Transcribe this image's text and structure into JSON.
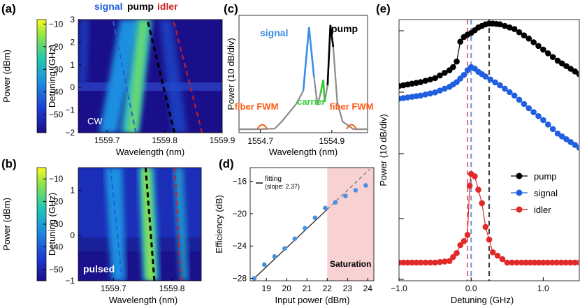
{
  "figure": {
    "panel_labels": [
      "(a)",
      "(b)",
      "(c)",
      "(d)",
      "(e)"
    ]
  },
  "colors": {
    "signal": "#1f5fe0",
    "pump": "#000000",
    "idler": "#cc1f1f",
    "carrier": "#33cc33",
    "fwm": "#ff5a14",
    "spectrum": "#8a8a8a",
    "fit": "#222222",
    "dot": "#4a90e2",
    "saturation": "#f8d2d2"
  },
  "chart_data": [
    {
      "panel": "a",
      "type": "heatmap",
      "xlabel": "Wavelength (nm)",
      "ylabel": "Detuning (GHz)",
      "xlim": [
        1559.65,
        1559.9
      ],
      "ylim": [
        -2,
        3
      ],
      "xticks": [
        "1559.7",
        "1559.8",
        "1559.9"
      ],
      "yticks": [
        "-2",
        "-1",
        "0",
        "1",
        "2",
        "3"
      ],
      "colorbar": {
        "label": "Power (dBm)",
        "range": [
          -58,
          -8
        ],
        "ticks": [
          "-10",
          "-20",
          "-30",
          "-40",
          "-50"
        ]
      },
      "line_labels": [
        "signal",
        "pump",
        "idler"
      ],
      "annotation": "CW",
      "lines": [
        {
          "name": "signal",
          "points": [
            [
              1559.75,
              -2
            ],
            [
              1559.71,
              3
            ]
          ]
        },
        {
          "name": "pump",
          "points": [
            [
              1559.817,
              -2
            ],
            [
              1559.77,
              3
            ]
          ]
        },
        {
          "name": "idler",
          "points": [
            [
              1559.865,
              -2
            ],
            [
              1559.815,
              3
            ]
          ]
        }
      ]
    },
    {
      "panel": "b",
      "type": "heatmap",
      "xlabel": "Wavelength (nm)",
      "ylabel": "Detuning (GHz)",
      "xlim": [
        1559.64,
        1559.85
      ],
      "ylim": [
        -1,
        1.5
      ],
      "xticks": [
        "1559.7",
        "1559.8"
      ],
      "yticks": [
        "-1",
        "0",
        "1"
      ],
      "colorbar": {
        "label": "Power (dBm)",
        "range": [
          -55,
          -5
        ],
        "ticks": [
          "-10",
          "-20",
          "-30",
          "-40",
          "-50"
        ]
      },
      "annotation": "pulsed",
      "lines": [
        {
          "name": "signal",
          "points": [
            [
              1559.715,
              -1
            ],
            [
              1559.695,
              1.5
            ]
          ]
        },
        {
          "name": "pump",
          "points": [
            [
              1559.77,
              -1
            ],
            [
              1559.755,
              1.5
            ]
          ]
        },
        {
          "name": "idler",
          "points": [
            [
              1559.815,
              -1
            ],
            [
              1559.805,
              1.5
            ]
          ]
        }
      ]
    },
    {
      "panel": "c",
      "type": "line",
      "xlabel": "Wavelength (nm)",
      "ylabel": "Power (10 dB/div)",
      "xticks": [
        "1554.7",
        "1554.9"
      ],
      "labels": {
        "signal": "signal",
        "pump": "pump",
        "carrier": "carrier",
        "fwm_left": "fiber FWM",
        "fwm_right": "fiber FWM"
      },
      "x": [
        1554.64,
        1554.7,
        1554.74,
        1554.76,
        1554.78,
        1554.8,
        1554.82,
        1554.836,
        1554.85,
        1554.86,
        1554.868,
        1554.876,
        1554.88,
        1554.888,
        1554.896,
        1554.904,
        1554.915,
        1554.93,
        1554.96,
        1555.0
      ],
      "y": [
        0,
        0,
        0.5,
        7,
        15,
        23,
        35,
        93,
        48,
        22,
        32,
        45,
        25,
        40,
        95,
        75,
        25,
        7,
        0,
        0
      ]
    },
    {
      "panel": "d",
      "type": "scatter",
      "xlabel": "Input power (dBm)",
      "ylabel": "Efficiency (dB)",
      "xlim": [
        18.2,
        24.3
      ],
      "ylim": [
        -28.3,
        -14.3
      ],
      "xticks": [
        "19",
        "20",
        "21",
        "22",
        "23",
        "24"
      ],
      "yticks": [
        "-16",
        "-20",
        "-24",
        "-28"
      ],
      "legend": [
        "fitting",
        "(slope: 2.37)"
      ],
      "shaded_label": "Saturation",
      "saturation_from": 22,
      "fit": {
        "slope": 2.37,
        "x0": 18.4,
        "y0": -28.0
      },
      "x": [
        18.4,
        18.9,
        19.4,
        19.9,
        20.4,
        20.9,
        21.4,
        21.9,
        22.4,
        22.9,
        23.4,
        23.9
      ],
      "y": [
        -28.0,
        -26.3,
        -25.3,
        -24.3,
        -23.1,
        -21.8,
        -20.5,
        -19.3,
        -18.6,
        -17.8,
        -17.1,
        -16.5
      ]
    },
    {
      "panel": "e",
      "type": "line",
      "xlabel": "Detuning (GHz)",
      "ylabel": "Power (10 dB/div)",
      "xlim": [
        -1.0,
        1.5
      ],
      "xticks": [
        "-1.0",
        "0.0",
        "1.0"
      ],
      "vlines": [
        -0.05,
        0.0,
        0.25
      ],
      "series": [
        {
          "name": "pump",
          "x": [
            -1.0,
            -0.7,
            -0.5,
            -0.3,
            -0.25,
            -0.2,
            -0.15,
            -0.1,
            -0.05,
            0.0,
            0.1,
            0.2,
            0.25,
            0.3,
            0.4,
            0.6,
            0.8,
            1.0,
            1.2,
            1.5
          ],
          "y": [
            84,
            79,
            74,
            64,
            60,
            53,
            28,
            22,
            19,
            17,
            10,
            6,
            5,
            5,
            6,
            12,
            24,
            38,
            52,
            69
          ]
        },
        {
          "name": "signal",
          "x": [
            -1.0,
            -0.7,
            -0.5,
            -0.3,
            -0.2,
            -0.1,
            -0.05,
            0.0,
            0.05,
            0.1,
            0.2,
            0.4,
            0.6,
            0.8,
            1.0,
            1.2,
            1.5
          ],
          "y": [
            100,
            96,
            92,
            85,
            79,
            70,
            64,
            60,
            62,
            66,
            72,
            83,
            96,
            112,
            127,
            144,
            162
          ]
        },
        {
          "name": "idler",
          "x": [
            -1.0,
            -0.7,
            -0.5,
            -0.3,
            -0.2,
            -0.15,
            -0.1,
            -0.05,
            -0.02,
            0.0,
            0.05,
            0.1,
            0.15,
            0.2,
            0.3,
            0.5,
            0.7,
            1.0,
            1.5
          ],
          "y": [
            307,
            307,
            307,
            305,
            295,
            285,
            280,
            272,
            210,
            195,
            198,
            215,
            232,
            262,
            294,
            307,
            307,
            307,
            307
          ]
        }
      ],
      "legend": [
        "pump",
        "signal",
        "idler"
      ]
    }
  ]
}
